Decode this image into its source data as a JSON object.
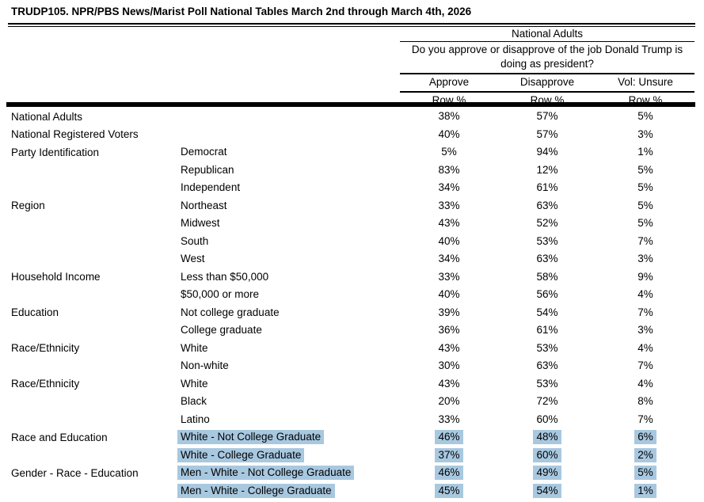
{
  "title": "TRUDP105. NPR/PBS News/Marist Poll National Tables March 2nd through March 4th, 2026",
  "header": {
    "group_label": "National Adults",
    "question": "Do you approve or disapprove of the job Donald Trump is doing as president?",
    "columns": [
      "Approve",
      "Disapprove",
      "Vol: Unsure"
    ],
    "row_unit": "Row %"
  },
  "highlight_color": "#a8c8e0",
  "rows": [
    {
      "category": "National Adults",
      "subcategory": "",
      "approve": "38%",
      "disapprove": "57%",
      "unsure": "5%",
      "highlighted": false
    },
    {
      "category": "National Registered Voters",
      "subcategory": "",
      "approve": "40%",
      "disapprove": "57%",
      "unsure": "3%",
      "highlighted": false
    },
    {
      "category": "Party Identification",
      "subcategory": "Democrat",
      "approve": "5%",
      "disapprove": "94%",
      "unsure": "1%",
      "highlighted": false
    },
    {
      "category": "",
      "subcategory": "Republican",
      "approve": "83%",
      "disapprove": "12%",
      "unsure": "5%",
      "highlighted": false
    },
    {
      "category": "",
      "subcategory": "Independent",
      "approve": "34%",
      "disapprove": "61%",
      "unsure": "5%",
      "highlighted": false
    },
    {
      "category": "Region",
      "subcategory": "Northeast",
      "approve": "33%",
      "disapprove": "63%",
      "unsure": "5%",
      "highlighted": false
    },
    {
      "category": "",
      "subcategory": "Midwest",
      "approve": "43%",
      "disapprove": "52%",
      "unsure": "5%",
      "highlighted": false
    },
    {
      "category": "",
      "subcategory": "South",
      "approve": "40%",
      "disapprove": "53%",
      "unsure": "7%",
      "highlighted": false
    },
    {
      "category": "",
      "subcategory": "West",
      "approve": "34%",
      "disapprove": "63%",
      "unsure": "3%",
      "highlighted": false
    },
    {
      "category": "Household Income",
      "subcategory": "Less than $50,000",
      "approve": "33%",
      "disapprove": "58%",
      "unsure": "9%",
      "highlighted": false
    },
    {
      "category": "",
      "subcategory": "$50,000 or more",
      "approve": "40%",
      "disapprove": "56%",
      "unsure": "4%",
      "highlighted": false
    },
    {
      "category": "Education",
      "subcategory": "Not college graduate",
      "approve": "39%",
      "disapprove": "54%",
      "unsure": "7%",
      "highlighted": false
    },
    {
      "category": "",
      "subcategory": "College graduate",
      "approve": "36%",
      "disapprove": "61%",
      "unsure": "3%",
      "highlighted": false
    },
    {
      "category": "Race/Ethnicity",
      "subcategory": "White",
      "approve": "43%",
      "disapprove": "53%",
      "unsure": "4%",
      "highlighted": false
    },
    {
      "category": "",
      "subcategory": "Non-white",
      "approve": "30%",
      "disapprove": "63%",
      "unsure": "7%",
      "highlighted": false
    },
    {
      "category": "Race/Ethnicity",
      "subcategory": "White",
      "approve": "43%",
      "disapprove": "53%",
      "unsure": "4%",
      "highlighted": false
    },
    {
      "category": "",
      "subcategory": "Black",
      "approve": "20%",
      "disapprove": "72%",
      "unsure": "8%",
      "highlighted": false
    },
    {
      "category": "",
      "subcategory": "Latino",
      "approve": "33%",
      "disapprove": "60%",
      "unsure": "7%",
      "highlighted": false
    },
    {
      "category": "Race and Education",
      "subcategory": "White - Not College Graduate",
      "approve": "46%",
      "disapprove": "48%",
      "unsure": "6%",
      "highlighted": true
    },
    {
      "category": "",
      "subcategory": "White - College Graduate",
      "approve": "37%",
      "disapprove": "60%",
      "unsure": "2%",
      "highlighted": true
    },
    {
      "category": "Gender - Race - Education",
      "subcategory": "Men - White - Not College Graduate",
      "approve": "46%",
      "disapprove": "49%",
      "unsure": "5%",
      "highlighted": true
    },
    {
      "category": "",
      "subcategory": "Men - White - College Graduate",
      "approve": "45%",
      "disapprove": "54%",
      "unsure": "1%",
      "highlighted": true
    }
  ]
}
